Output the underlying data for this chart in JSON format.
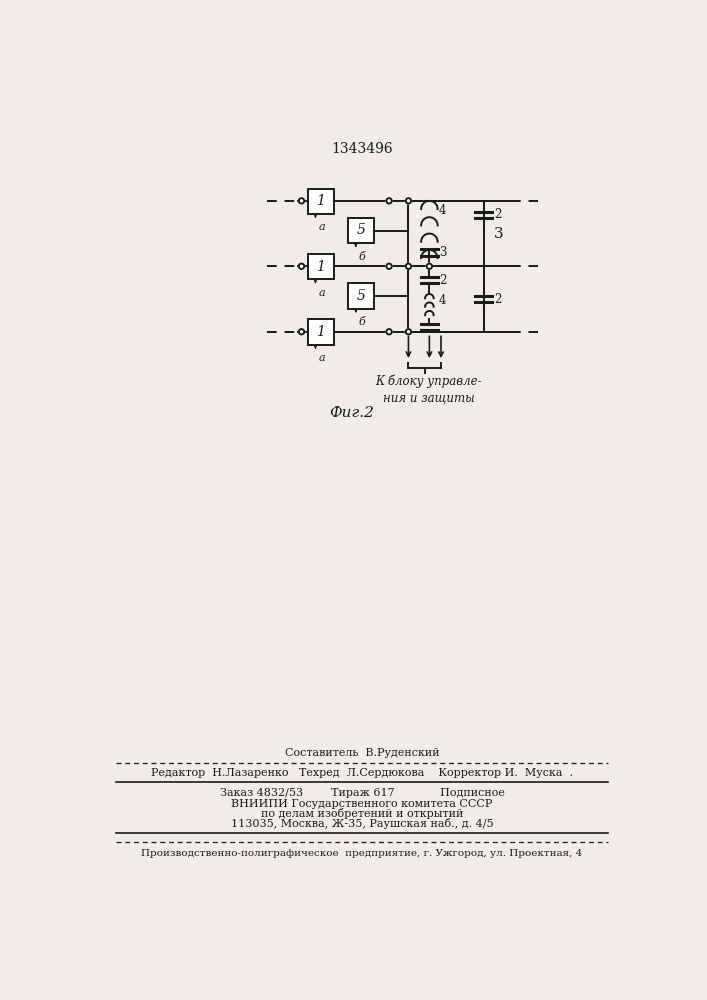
{
  "title": "1343496",
  "bg_color": "#f0ede8",
  "line_color": "#1a1a1a",
  "footer": {
    "line1": "Составитель  В.Руденский",
    "line2": "Редактор  Н.Лазаренко   Техред  Л.Сердюкова    Корректор И.  Муска",
    "line3": "Заказ 4832/53        Тираж 617             Подписное",
    "line4": "ВНИИПИ Государственного комитета СССР",
    "line5": "по делам изобретений и открытий",
    "line6": "113035, Москва, Ж-35, Раушская наб., д. 4/5",
    "line7": "Производственно-полиграфическое предприятие, г. Ужгород, ул. Проектная, 4"
  }
}
